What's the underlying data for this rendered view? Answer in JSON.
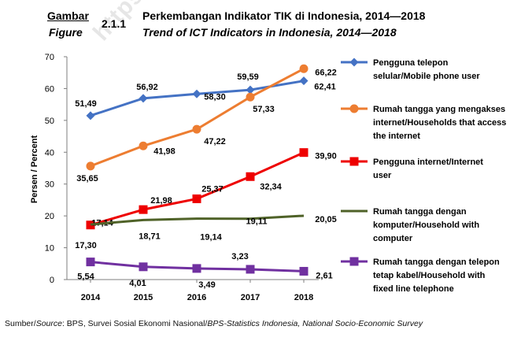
{
  "header": {
    "gambar": "Gambar",
    "figure": "Figure",
    "number": "2.1.1",
    "title_id": "Perkembangan Indikator TIK di Indonesia, 2014—2018",
    "title_en": "Trend of ICT Indicators in Indonesia, 2014—2018"
  },
  "watermark": "https://",
  "source": {
    "prefix": "Sumber/",
    "source_label": "Source",
    "text": ": BPS, Survei Sosial Ekonomi Nasional/",
    "text_en": "BPS-Statistics Indonesia, National Socio-Economic Survey"
  },
  "chart_data": {
    "type": "line",
    "title": "",
    "xlabel": "",
    "ylabel": "Persen / Percent",
    "x": [
      "2014",
      "2015",
      "2016",
      "2017",
      "2018"
    ],
    "ylim": [
      0,
      70
    ],
    "yticks": [
      0,
      10,
      20,
      30,
      40,
      50,
      60,
      70
    ],
    "grid": false,
    "legend_placement": "right",
    "series": [
      {
        "name": "Pengguna telepon selular/Mobile phone user",
        "legend_lines": [
          "Pengguna telepon",
          "selular/Mobile phone user"
        ],
        "values": [
          51.49,
          56.92,
          58.3,
          59.59,
          62.41
        ],
        "labels": [
          "51,49",
          "56,92",
          "58,30",
          "59,59",
          "62,41"
        ],
        "color": "#4472c4",
        "marker": "diamond"
      },
      {
        "name": "Rumah tangga yang mengakses internet/Households that access the internet",
        "legend_lines": [
          "Rumah tangga yang mengakses",
          "internet/Households that access",
          "the internet"
        ],
        "values": [
          35.65,
          41.98,
          47.22,
          57.33,
          66.22
        ],
        "labels": [
          "35,65",
          "41,98",
          "47,22",
          "57,33",
          "66,22"
        ],
        "color": "#ed7d31",
        "marker": "circle"
      },
      {
        "name": "Pengguna internet/Internet user",
        "legend_lines": [
          "Pengguna internet/Internet",
          "user"
        ],
        "values": [
          17.14,
          21.98,
          25.37,
          32.34,
          39.9
        ],
        "labels": [
          "17,14",
          "21,98",
          "25,37",
          "32,34",
          "39,90"
        ],
        "color": "#ee0000",
        "marker": "square"
      },
      {
        "name": "Rumah tangga dengan komputer/Household with computer",
        "legend_lines": [
          "Rumah tangga dengan",
          "komputer/Household with",
          "computer"
        ],
        "values": [
          17.3,
          18.71,
          19.14,
          19.11,
          20.05
        ],
        "labels": [
          "17,30",
          "18,71",
          "19,14",
          "19,11",
          "20,05"
        ],
        "color": "#4f6228",
        "marker": "none"
      },
      {
        "name": "Rumah tangga dengan telepon tetap kabel/Household with fixed line telephone",
        "legend_lines": [
          "Rumah tangga dengan telepon",
          "tetap kabel/Household with",
          "fixed line telephone"
        ],
        "values": [
          5.54,
          4.01,
          3.49,
          3.23,
          2.61
        ],
        "labels": [
          "5,54",
          "4,01",
          "3,49",
          "3,23",
          "2,61"
        ],
        "color": "#7030a0",
        "marker": "square"
      }
    ]
  }
}
